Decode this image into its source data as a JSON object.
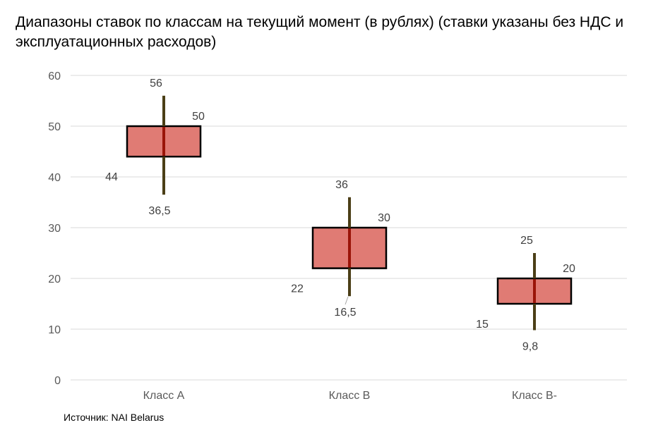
{
  "chart_data": {
    "type": "box",
    "title": "Диапазоны ставок по классам на текущий момент (в рублях) (ставки указаны без НДС и эксплуатационных расходов)",
    "xlabel": "",
    "ylabel": "",
    "ylim": [
      0,
      60
    ],
    "yticks": [
      0,
      10,
      20,
      30,
      40,
      50,
      60
    ],
    "ytick_labels": [
      "0",
      "10",
      "20",
      "30",
      "40",
      "50",
      "60"
    ],
    "grid": true,
    "categories": [
      "Класс А",
      "Класс В",
      "Класс В-"
    ],
    "series": [
      {
        "name": "Класс А",
        "low": 36.5,
        "high": 56,
        "box_low": 44,
        "box_high": 50,
        "labels": {
          "low": "36,5",
          "high": "56",
          "box_low": "44",
          "box_high": "50"
        }
      },
      {
        "name": "Класс В",
        "low": 16.5,
        "high": 36,
        "box_low": 22,
        "box_high": 30,
        "labels": {
          "low": "16,5",
          "high": "36",
          "box_low": "22",
          "box_high": "30"
        }
      },
      {
        "name": "Класс В-",
        "low": 9.8,
        "high": 25,
        "box_low": 15,
        "box_high": 20,
        "labels": {
          "low": "9,8",
          "high": "25",
          "box_low": "15",
          "box_high": "20"
        }
      }
    ],
    "colors": {
      "box_fill": "#e07b74",
      "box_stroke": "#000000",
      "whisker": "#4b3f17",
      "whisker_inside": "#9a1408",
      "grid": "#d9d9d9"
    }
  },
  "source": "Источник: NAI Belarus"
}
